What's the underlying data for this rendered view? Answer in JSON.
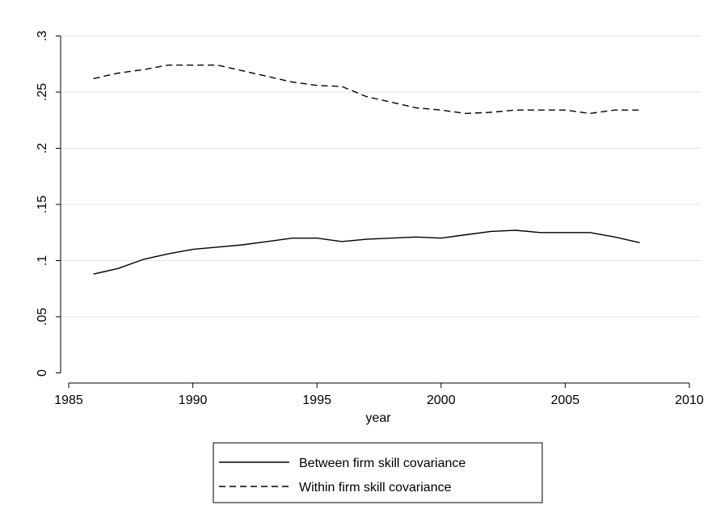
{
  "chart_data": {
    "type": "line",
    "title": "",
    "xlabel": "year",
    "ylabel": "",
    "xlim": [
      1985,
      2010
    ],
    "ylim": [
      0,
      0.3
    ],
    "x_ticks": [
      1985,
      1990,
      1995,
      2000,
      2005,
      2010
    ],
    "x_tick_labels": [
      "1985",
      "1990",
      "1995",
      "2000",
      "2005",
      "2010"
    ],
    "y_ticks": [
      0,
      0.05,
      0.1,
      0.15,
      0.2,
      0.25,
      0.3
    ],
    "y_tick_labels": [
      "0",
      ".05",
      ".1",
      ".15",
      ".2",
      ".25",
      ".3"
    ],
    "grid": "horizontal",
    "legend_position": "bottom",
    "x": [
      1986,
      1987,
      1988,
      1989,
      1990,
      1991,
      1992,
      1993,
      1994,
      1995,
      1996,
      1997,
      1998,
      1999,
      2000,
      2001,
      2002,
      2003,
      2004,
      2005,
      2006,
      2007,
      2008
    ],
    "series": [
      {
        "name": "Between firm skill covariance",
        "style": "solid",
        "values": [
          0.088,
          0.093,
          0.101,
          0.106,
          0.11,
          0.112,
          0.114,
          0.117,
          0.12,
          0.12,
          0.117,
          0.119,
          0.12,
          0.121,
          0.12,
          0.123,
          0.126,
          0.127,
          0.125,
          0.125,
          0.125,
          0.121,
          0.116
        ]
      },
      {
        "name": "Within firm skill covariance",
        "style": "dashed",
        "values": [
          0.262,
          0.267,
          0.27,
          0.274,
          0.274,
          0.274,
          0.269,
          0.264,
          0.259,
          0.256,
          0.255,
          0.246,
          0.241,
          0.236,
          0.234,
          0.231,
          0.232,
          0.234,
          0.234,
          0.234,
          0.231,
          0.234,
          0.234
        ]
      }
    ]
  }
}
